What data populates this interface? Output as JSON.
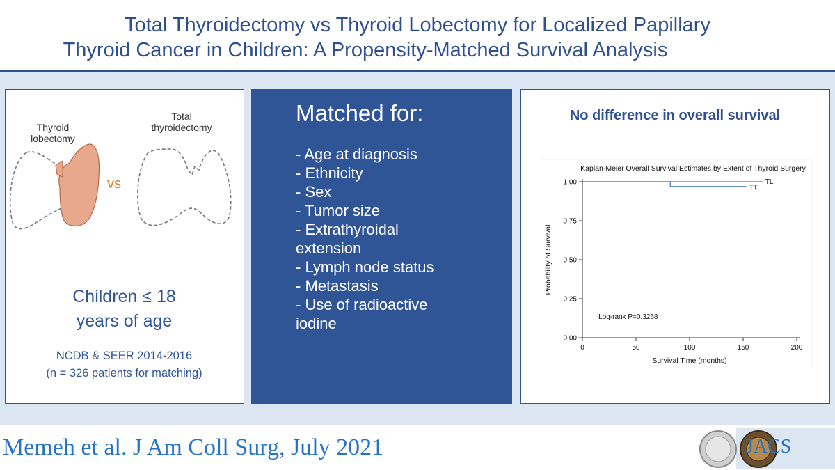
{
  "title": {
    "line1": "Total Thyroidectomy vs Thyroid Lobectomy for Localized Papillary",
    "line2": "Thyroid Cancer in Children: A Propensity-Matched Survival Analysis"
  },
  "panel_left": {
    "label_lobectomy_1": "Thyroid",
    "label_lobectomy_2": "lobectomy",
    "label_total_1": "Total",
    "label_total_2": "thyroidectomy",
    "vs": "vs",
    "children_1": "Children ≤ 18",
    "children_2": "years of age",
    "source_1": "NCDB & SEER 2014-2016",
    "source_2": "(n = 326 patients for matching)"
  },
  "panel_middle": {
    "heading": "Matched for:",
    "items": [
      "- Age at diagnosis",
      "- Ethnicity",
      "- Sex",
      "- Tumor size",
      "- Extrathyroidal extension",
      "- Lymph node status",
      "- Metastasis",
      "- Use of radioactive iodine"
    ]
  },
  "panel_right": {
    "heading": "No difference in overall survival"
  },
  "chart_data": {
    "type": "line",
    "title": "Kaplan-Meier Overall Survival Estimates by Extent of Thyroid Surgery",
    "xlabel": "Survival Time (months)",
    "ylabel": "Probability of Survival",
    "xlim": [
      0,
      200
    ],
    "ylim": [
      0,
      1
    ],
    "xticks": [
      "0",
      "50",
      "100",
      "150",
      "200"
    ],
    "yticks": [
      "0.00",
      "0.25",
      "0.50",
      "0.75",
      "1.00"
    ],
    "annotation": "Log-rank P=0.3268",
    "series": [
      {
        "name": "TL",
        "color": "#c0504d",
        "x": [
          0,
          168
        ],
        "y": [
          1.0,
          1.0
        ]
      },
      {
        "name": "TT",
        "color": "#4f81bd",
        "x": [
          0,
          82,
          82,
          153
        ],
        "y": [
          1.0,
          1.0,
          0.97,
          0.97
        ]
      }
    ]
  },
  "footer": {
    "citation": "Memeh et al. J Am Coll Surg, July 2021",
    "journal": "JACS"
  }
}
